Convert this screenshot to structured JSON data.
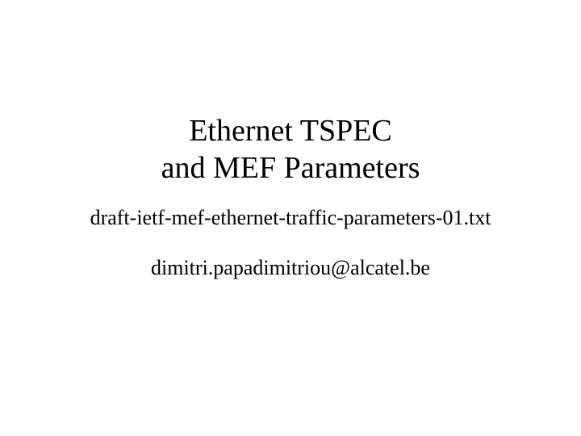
{
  "slide": {
    "title_line1": "Ethernet TSPEC",
    "title_line2": "and MEF Parameters",
    "subtitle": "draft-ietf-mef-ethernet-traffic-parameters-01.txt",
    "email": "dimitri.papadimitriou@alcatel.be",
    "background_color": "#ffffff",
    "text_color": "#000000",
    "title_fontsize": 38,
    "body_fontsize": 26,
    "font_family": "Times New Roman"
  }
}
